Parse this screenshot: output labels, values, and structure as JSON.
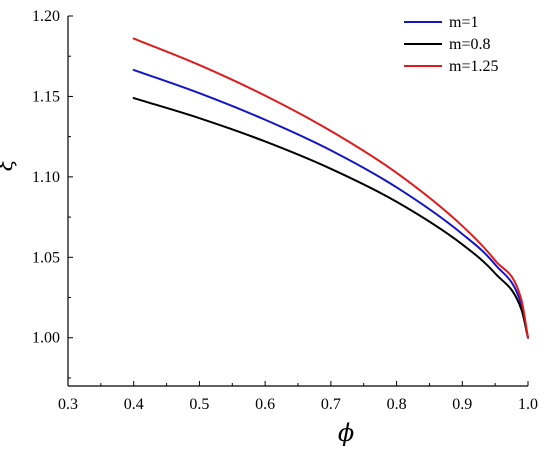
{
  "chart_data": {
    "type": "line",
    "xlabel": "ϕ",
    "ylabel": "ξ",
    "xlim": [
      0.3,
      1.0
    ],
    "ylim": [
      0.97,
      1.2
    ],
    "x_ticks": [
      "0.3",
      "0.4",
      "0.5",
      "0.6",
      "0.7",
      "0.8",
      "0.9",
      "1.0"
    ],
    "y_ticks": [
      "1.00",
      "1.05",
      "1.10",
      "1.15",
      "1.20"
    ],
    "grid": false,
    "legend_position": "top-right",
    "series": [
      {
        "name": "m=1",
        "color": "#1515c8",
        "x": [
          0.4,
          0.5,
          0.6,
          0.7,
          0.8,
          0.9,
          0.95,
          0.99,
          1.0
        ],
        "y": [
          1.1665,
          1.152,
          1.1355,
          1.1165,
          1.0935,
          1.0645,
          1.0455,
          1.0205,
          1.0
        ]
      },
      {
        "name": "m=0.8",
        "color": "#000000",
        "x": [
          0.4,
          0.5,
          0.6,
          0.7,
          0.8,
          0.9,
          0.95,
          0.99,
          1.0
        ],
        "y": [
          1.149,
          1.1365,
          1.122,
          1.105,
          1.0845,
          1.058,
          1.04,
          1.0175,
          1.0
        ]
      },
      {
        "name": "m=1.25",
        "color": "#e01b1b",
        "x": [
          0.4,
          0.5,
          0.6,
          0.7,
          0.8,
          0.9,
          0.95,
          0.99,
          1.0
        ],
        "y": [
          1.186,
          1.1695,
          1.1505,
          1.1285,
          1.1025,
          1.0695,
          1.048,
          1.0235,
          1.0
        ]
      }
    ]
  }
}
